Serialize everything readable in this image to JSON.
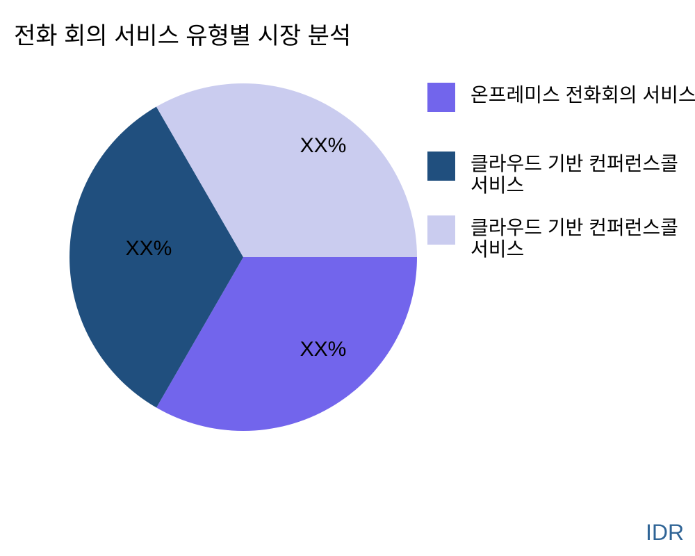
{
  "title": "전화 회의 서비스 유형별 시장 분석",
  "watermark": "IDR",
  "chart_data": {
    "type": "pie",
    "title": "전화 회의 서비스 유형별 시장 분석",
    "legend_position": "right",
    "direction": "clockwise",
    "start_angle_deg": 0,
    "slices": [
      {
        "name": "온프레미스 전화회의 서비스",
        "value": 33.33,
        "display_label": "XX%",
        "color": "#7265EC"
      },
      {
        "name": "클라우드 기반 컨퍼런스콜 서비스",
        "value": 33.33,
        "display_label": "XX%",
        "color": "#204F7E"
      },
      {
        "name": "클라우드 기반 컨퍼런스콜 서비스",
        "value": 33.34,
        "display_label": "XX%",
        "color": "#CACCEF"
      }
    ]
  },
  "legend": {
    "items": [
      {
        "line1": "온프레미스 전화회의 서비스",
        "line2": "",
        "color": "#7265EC"
      },
      {
        "line1": "클라우드 기반 컨퍼런스콜",
        "line2": "서비스",
        "color": "#204F7E"
      },
      {
        "line1": "클라우드 기반 컨퍼런스콜",
        "line2": "서비스",
        "color": "#CACCEF"
      }
    ]
  }
}
